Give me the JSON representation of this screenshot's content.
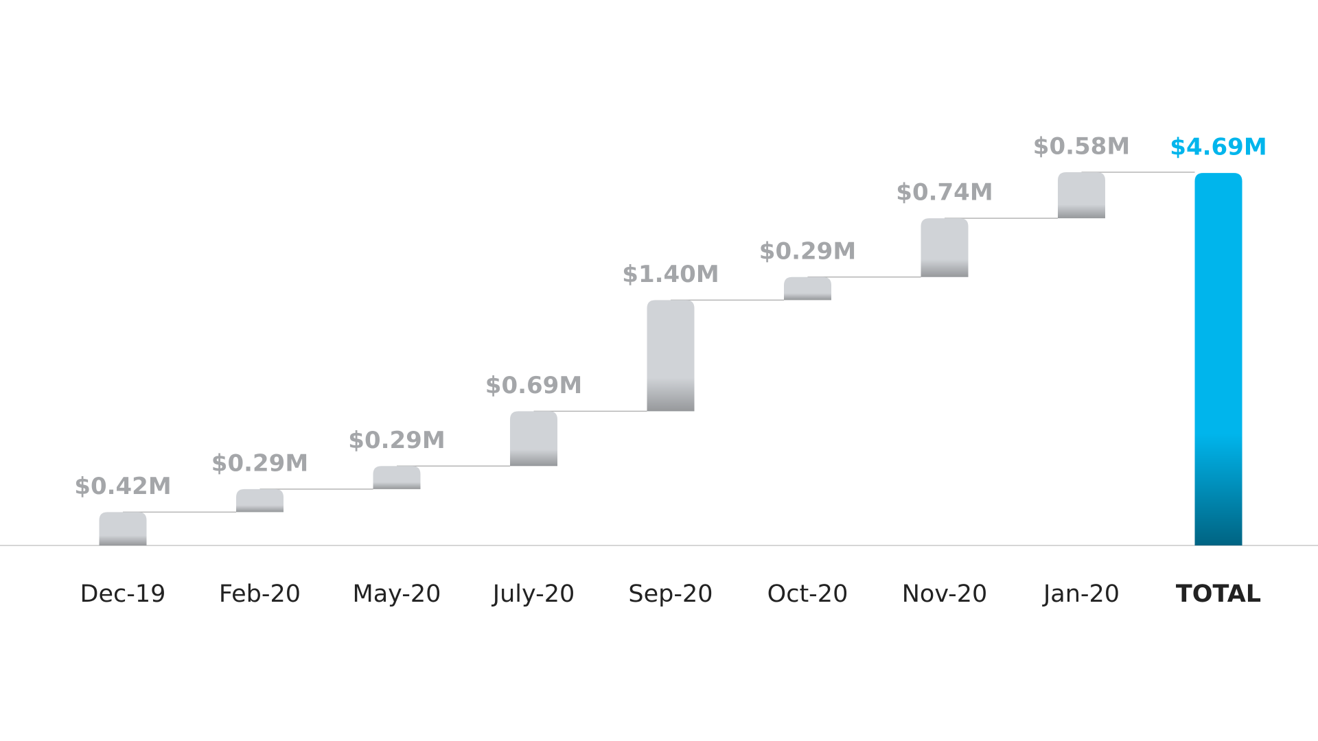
{
  "chart_data": {
    "type": "waterfall",
    "categories": [
      "Dec-19",
      "Feb-20",
      "May-20",
      "July-20",
      "Sep-20",
      "Oct-20",
      "Nov-20",
      "Jan-20"
    ],
    "values": [
      0.42,
      0.29,
      0.29,
      0.69,
      1.4,
      0.29,
      0.74,
      0.58
    ],
    "value_labels": [
      "$0.42M",
      "$0.29M",
      "$0.29M",
      "$0.69M",
      "$1.40M",
      "$0.29M",
      "$0.74M",
      "$0.58M"
    ],
    "color": "#d0d3d7",
    "total": {
      "label": "TOTAL",
      "value": 4.69,
      "value_label": "$4.69M",
      "color": "#00b5ec"
    }
  }
}
